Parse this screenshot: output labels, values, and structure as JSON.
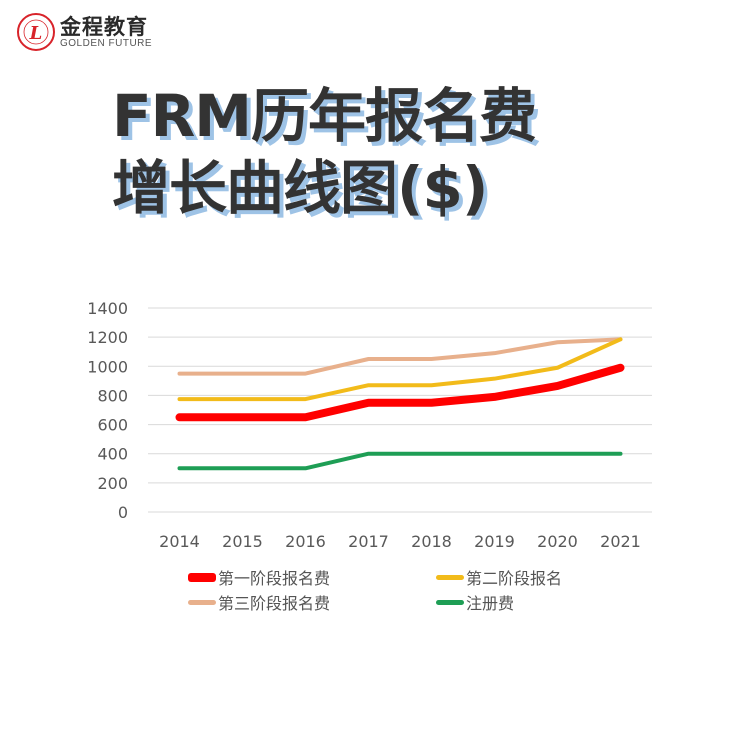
{
  "brand": {
    "name_cn": "金程教育",
    "name_en": "GOLDEN FUTURE",
    "color": "#d8232a"
  },
  "title": {
    "line1": "FRM历年报名费",
    "line2": "增长曲线图($)"
  },
  "chart_data": {
    "type": "line",
    "title": "FRM历年报名费增长曲线图($)",
    "xlabel": "",
    "ylabel": "",
    "categories": [
      "2014",
      "2015",
      "2016",
      "2017",
      "2018",
      "2019",
      "2020",
      "2021"
    ],
    "yticks": [
      "0",
      "200",
      "400",
      "600",
      "800",
      "1000",
      "1200",
      "1400"
    ],
    "ylim": [
      0,
      1400
    ],
    "grid": true,
    "legend_position": "bottom",
    "series": [
      {
        "name": "第一阶段报名费",
        "color": "#ff0000",
        "width": 8,
        "values": [
          650,
          650,
          650,
          750,
          750,
          790,
          865,
          990
        ]
      },
      {
        "name": "第二阶段报名",
        "color": "#f2bb1a",
        "width": 4,
        "values": [
          775,
          775,
          775,
          870,
          870,
          915,
          990,
          1185
        ]
      },
      {
        "name": "第三阶段报名费",
        "color": "#e8b08c",
        "width": 4,
        "values": [
          950,
          950,
          950,
          1050,
          1050,
          1090,
          1165,
          1185
        ]
      },
      {
        "name": "注册费",
        "color": "#1e9e55",
        "width": 4,
        "values": [
          300,
          300,
          300,
          400,
          400,
          400,
          400,
          400
        ]
      }
    ]
  }
}
